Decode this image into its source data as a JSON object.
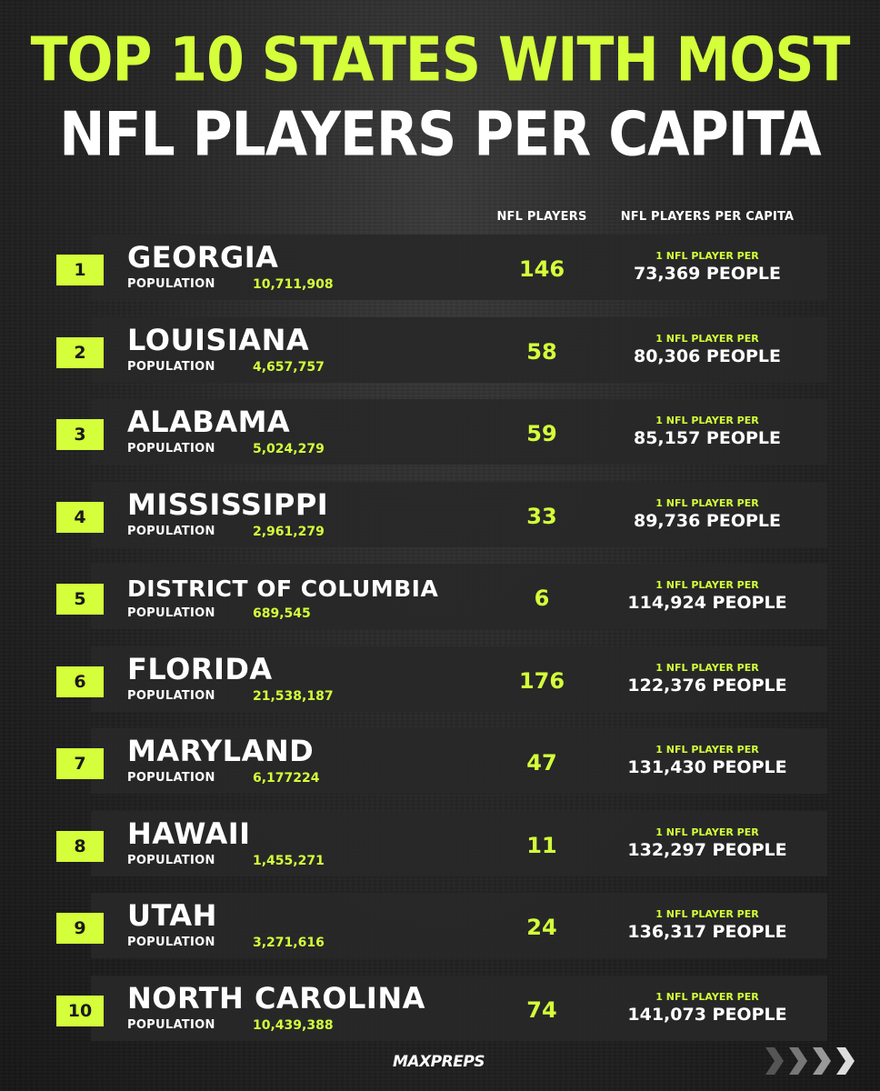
{
  "title": {
    "line1": "TOP 10 STATES WITH MOST",
    "line2": "NFL PLAYERS PER CAPITA"
  },
  "headers": {
    "players": "NFL PLAYERS",
    "per_capita": "NFL PLAYERS PER CAPITA"
  },
  "population_label": "POPULATION",
  "per_label": "1 NFL PLAYER PER",
  "rows": [
    {
      "rank": "1",
      "state": "GEORGIA",
      "population": "10,711,908",
      "players": "146",
      "per_value": "73,369 PEOPLE"
    },
    {
      "rank": "2",
      "state": "LOUISIANA",
      "population": "4,657,757",
      "players": "58",
      "per_value": "80,306 PEOPLE"
    },
    {
      "rank": "3",
      "state": "ALABAMA",
      "population": "5,024,279",
      "players": "59",
      "per_value": "85,157 PEOPLE"
    },
    {
      "rank": "4",
      "state": "MISSISSIPPI",
      "population": "2,961,279",
      "players": "33",
      "per_value": "89,736 PEOPLE"
    },
    {
      "rank": "5",
      "state": "DISTRICT OF COLUMBIA",
      "population": "689,545",
      "players": "6",
      "per_value": "114,924 PEOPLE"
    },
    {
      "rank": "6",
      "state": "FLORIDA",
      "population": "21,538,187",
      "players": "176",
      "per_value": "122,376 PEOPLE"
    },
    {
      "rank": "7",
      "state": "MARYLAND",
      "population": "6,177224",
      "players": "47",
      "per_value": "131,430 PEOPLE"
    },
    {
      "rank": "8",
      "state": "HAWAII",
      "population": "1,455,271",
      "players": "11",
      "per_value": "132,297 PEOPLE"
    },
    {
      "rank": "9",
      "state": "UTAH",
      "population": "3,271,616",
      "players": "24",
      "per_value": "136,317 PEOPLE"
    },
    {
      "rank": "10",
      "state": "NORTH CAROLINA",
      "population": "10,439,388",
      "players": "74",
      "per_value": "141,073 PEOPLE"
    }
  ],
  "logo": "MAXPREPS",
  "colors": {
    "accent": "#d4ff3a",
    "panel": "#282828",
    "text": "#ffffff"
  },
  "icons": {
    "logo": "maxpreps-logo",
    "chevrons": "chevron-right-icon"
  }
}
